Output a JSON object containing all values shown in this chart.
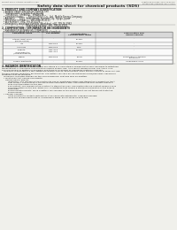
{
  "bg_color": "#f0f0eb",
  "header_top_left": "Product name: Lithium Ion Battery Cell",
  "header_top_right_line1": "Substance number: SDS-LIB-00010",
  "header_top_right_line2": "Established / Revision: Dec.7.2010",
  "title": "Safety data sheet for chemical products (SDS)",
  "section1_title": "1. PRODUCT AND COMPANY IDENTIFICATION",
  "section1_lines": [
    "  • Product name: Lithium Ion Battery Cell",
    "  • Product code: Cylindrical-type cell",
    "       SFr-B650U,  SFr-B650L,  SFr-B650A",
    "  • Company name:       Sanyo Electric Co., Ltd.  Mobile Energy Company",
    "  • Address:       2001  Kamiyasato, Sumoto City, Hyogo, Japan",
    "  • Telephone number :     +81-799-26-4111",
    "  • Fax number:  +81-799-26-4129",
    "  • Emergency telephone number (Weekday) +81-799-26-3962",
    "                                    (Night and holiday) +81-799-26-4101"
  ],
  "section2_title": "2. COMPOSITION / INFORMATION ON INGREDIENTS",
  "section2_lines": [
    "  • Substance or preparation: Preparation",
    "  • Information about the chemical nature of product:"
  ],
  "table_headers": [
    "Component name",
    "CAS number",
    "Concentration /\nConcentration range",
    "Classification and\nhazard labeling"
  ],
  "table_rows": [
    [
      "Lithium cobalt oxide\n(LiCoO2/LiNiO2)",
      "-",
      "30-40%",
      "-"
    ],
    [
      "Iron",
      "7439-89-6",
      "15-25%",
      "-"
    ],
    [
      "Aluminum",
      "7429-90-5",
      "3-8%",
      "-"
    ],
    [
      "Graphite\n(Hard graphite)\n(Artificial graphite)",
      "7782-42-5\n7782-44-2",
      "10-25%",
      "-"
    ],
    [
      "Copper",
      "7440-50-8",
      "5-15%",
      "Sensitization of the skin\ngroup No.2"
    ],
    [
      "Organic electrolyte",
      "-",
      "10-20%",
      "Inflammable liquid"
    ]
  ],
  "section3_title": "3. HAZARDS IDENTIFICATION",
  "section3_text": [
    "For the battery cell, chemical materials are stored in a hermetically sealed metal case, designed to withstand",
    "temperatures or pressures-concentrations during normal use. As a result, during normal use, there is no",
    "physical danger of ignition or explosion and there is no danger of hazardous materials leakage.",
    "   However, if exposed to a fire, added mechanical shocks, decomposed, when electric current of many mA use,",
    "the gas release ventilation be operated. The battery cell case will be breached of fire/explosion, hazardous",
    "materials may be released.",
    "   Moreover, if heated strongly by the surrounding fire, soot gas may be emitted."
  ],
  "section3_bullet1": "• Most important hazard and effects:",
  "section3_human": "Human health effects:",
  "section3_human_details": [
    "    Inhalation: The release of the electrolyte has an anesthesia action and stimulates a respiratory tract.",
    "    Skin contact: The release of the electrolyte stimulates a skin. The electrolyte skin contact causes a",
    "    sore and stimulation on the skin.",
    "    Eye contact: The release of the electrolyte stimulates eyes. The electrolyte eye contact causes a sore",
    "    and stimulation on the eye. Especially, a substance that causes a strong inflammation of the eyes is",
    "    contained.",
    "    Environmental effects: Since a battery cell remains in the environment, do not throw out it into the",
    "    environment."
  ],
  "section3_bullet2": "• Specific hazards:",
  "section3_specific": [
    "    If the electrolyte contacts with water, it will generate detrimental hydrogen fluoride.",
    "    Since the sealed electrolyte is inflammable liquid, do not bring close to fire."
  ],
  "text_color": "#222222",
  "line_color": "#999999",
  "table_header_bg": "#d8d8d8",
  "table_border": "#888888"
}
